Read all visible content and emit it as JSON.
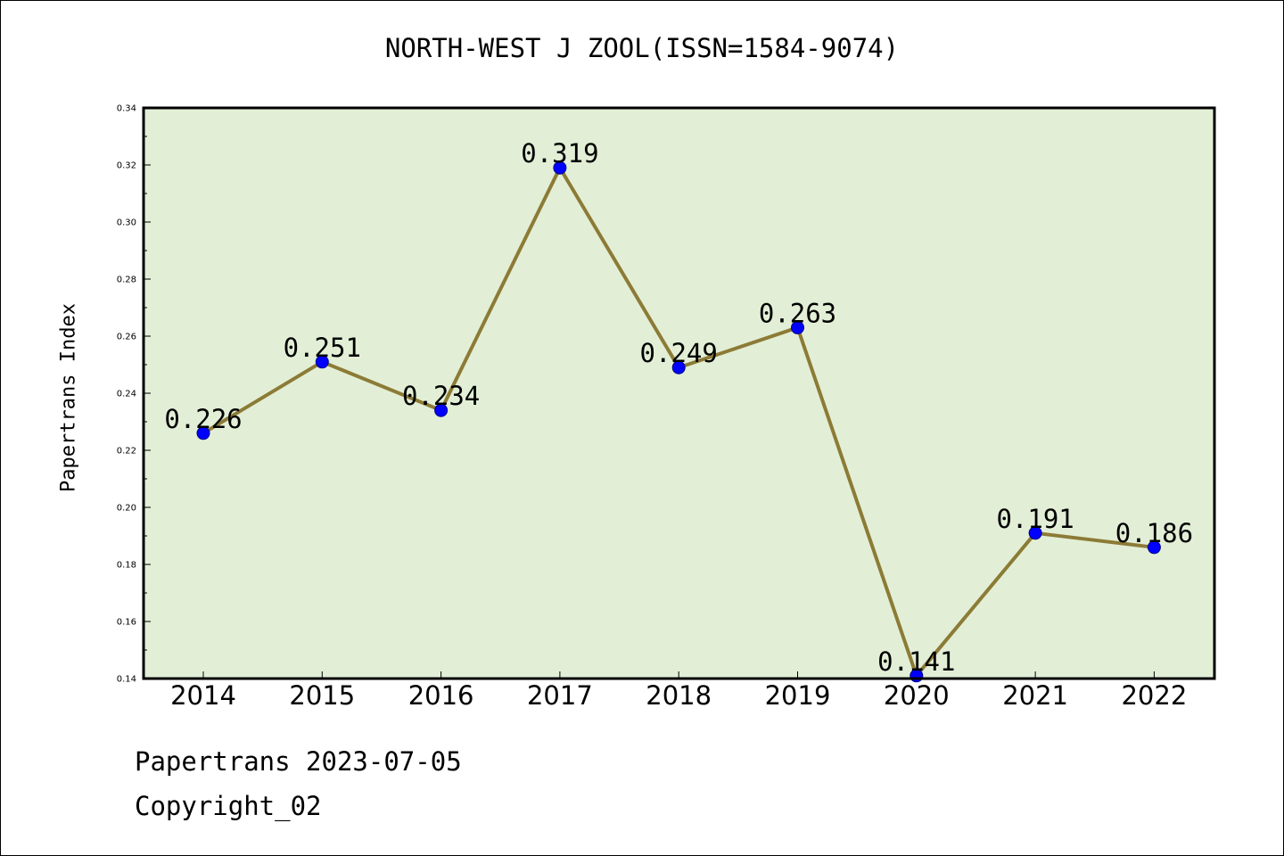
{
  "chart_data": {
    "type": "line",
    "title": "NORTH-WEST J ZOOL(ISSN=1584-9074)",
    "xlabel": "",
    "ylabel": "Papertrans Index",
    "categories": [
      "2014",
      "2015",
      "2016",
      "2017",
      "2018",
      "2019",
      "2020",
      "2021",
      "2022"
    ],
    "values": [
      0.226,
      0.251,
      0.234,
      0.319,
      0.249,
      0.263,
      0.141,
      0.191,
      0.186
    ],
    "data_labels": [
      "0.226",
      "0.251",
      "0.234",
      "0.319",
      "0.249",
      "0.263",
      "0.141",
      "0.191",
      "0.186"
    ],
    "ylim": [
      0.14,
      0.34
    ],
    "yticks": [
      "0.14",
      "0.16",
      "0.18",
      "0.20",
      "0.22",
      "0.24",
      "0.26",
      "0.28",
      "0.30",
      "0.32",
      "0.34"
    ],
    "grid": false,
    "colors": {
      "plot_background": "#e2efd6",
      "line": "#8c7b36",
      "marker": "#0000ff"
    }
  },
  "footer": {
    "line1": "Papertrans 2023-07-05",
    "line2": "Copyright_02"
  }
}
